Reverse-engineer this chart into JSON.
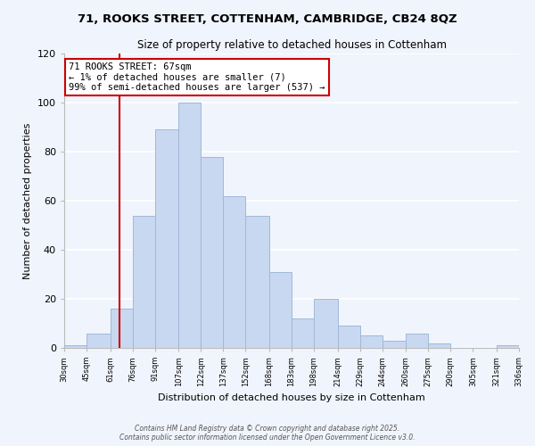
{
  "title": "71, ROOKS STREET, COTTENHAM, CAMBRIDGE, CB24 8QZ",
  "subtitle": "Size of property relative to detached houses in Cottenham",
  "xlabel": "Distribution of detached houses by size in Cottenham",
  "ylabel": "Number of detached properties",
  "bar_color": "#c8d8f0",
  "bar_edge_color": "#a0b8d8",
  "background_color": "#f0f4fc",
  "grid_color": "#ffffff",
  "vline_x": 67,
  "vline_color": "#cc0000",
  "annotation_line1": "71 ROOKS STREET: 67sqm",
  "annotation_line2": "← 1% of detached houses are smaller (7)",
  "annotation_line3": "99% of semi-detached houses are larger (537) →",
  "annotation_box_color": "#ffffff",
  "annotation_box_edge": "#cc0000",
  "bin_edges": [
    30,
    45,
    61,
    76,
    91,
    107,
    122,
    137,
    152,
    168,
    183,
    198,
    214,
    229,
    244,
    260,
    275,
    290,
    305,
    321,
    336
  ],
  "bin_counts": [
    1,
    6,
    16,
    54,
    89,
    100,
    78,
    62,
    54,
    31,
    12,
    20,
    9,
    5,
    3,
    6,
    2,
    0,
    0,
    1
  ],
  "ylim": [
    0,
    120
  ],
  "yticks": [
    0,
    20,
    40,
    60,
    80,
    100,
    120
  ],
  "footer_line1": "Contains HM Land Registry data © Crown copyright and database right 2025.",
  "footer_line2": "Contains public sector information licensed under the Open Government Licence v3.0."
}
